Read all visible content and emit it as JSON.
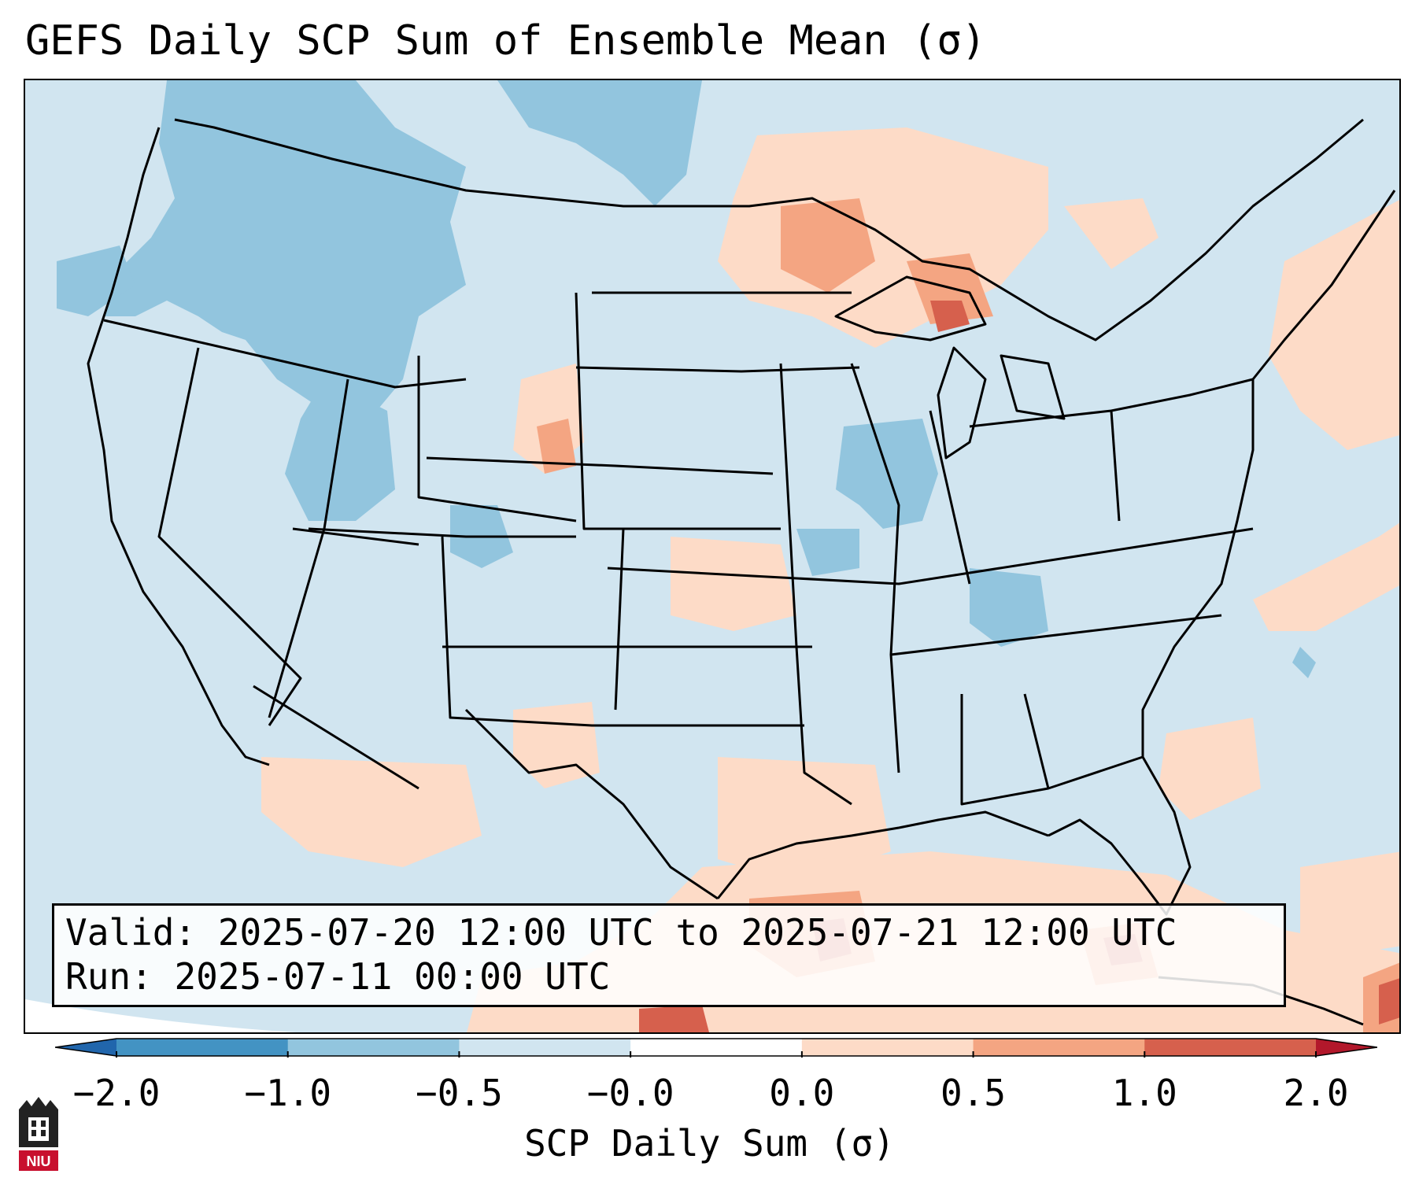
{
  "title": "GEFS Daily SCP Sum of Ensemble Mean (σ)",
  "info": {
    "valid_line": "Valid: 2025-07-20 12:00 UTC to 2025-07-21 12:00 UTC",
    "run_line": "Run:   2025-07-11 00:00 UTC"
  },
  "colorbar": {
    "label": "SCP Daily Sum (σ)",
    "ticks": [
      "−2.0",
      "−1.0",
      "−0.5",
      "−0.0",
      "0.0",
      "0.5",
      "1.0",
      "2.0"
    ],
    "colors": [
      "#2166ac",
      "#4393c3",
      "#92c5de",
      "#d1e5f0",
      "#ffffff",
      "#fddbc7",
      "#f4a582",
      "#d6604d",
      "#b2182b"
    ]
  },
  "logo": {
    "text": "NIU"
  },
  "chart_data": {
    "type": "heatmap",
    "variable": "SCP Daily Sum (σ)",
    "domain": "Continental United States",
    "levels": [
      -2.0,
      -1.0,
      -0.5,
      -0.0,
      0.0,
      0.5,
      1.0,
      2.0
    ],
    "extend": "both",
    "background_level": "-0.5 to -0.0",
    "regions": [
      {
        "area": "Pacific Northwest / Idaho / W Montana",
        "level": "-1.0 to -0.5"
      },
      {
        "area": "SW Wyoming / N Utah / W Colorado",
        "level": "-1.0 to -0.5"
      },
      {
        "area": "Illinois / Kentucky",
        "level": "-1.0 to -0.5"
      },
      {
        "area": "Upper Great Lakes / N Minnesota",
        "level": "0.0 to 1.0"
      },
      {
        "area": "Western Atlantic offshore",
        "level": "0.0 to 0.5"
      },
      {
        "area": "Gulf of Mexico",
        "level": "0.0 to 1.0"
      },
      {
        "area": "Southern Gulf / Yucatan / Cuba",
        "level": "1.0 to 2.0"
      }
    ]
  }
}
